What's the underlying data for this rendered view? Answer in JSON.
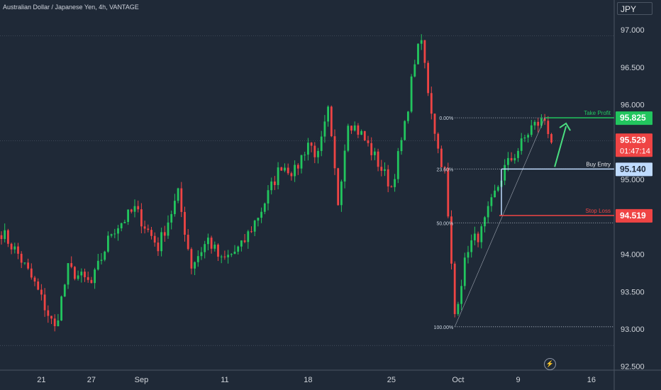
{
  "header": {
    "title": "Australian Dollar / Japanese Yen, 4h, VANTAGE",
    "currency": "JPY"
  },
  "colors": {
    "background": "#1f2937",
    "up": "#22c55e",
    "down": "#ef4444",
    "take_profit": "#22c55e",
    "stop_loss": "#ef4444",
    "entry": "#bfdbfe",
    "axis_text": "#d1d5db"
  },
  "chart_data": {
    "type": "candlestick",
    "y_ticks": [
      "97.000",
      "96.500",
      "96.000",
      "95.500",
      "95.000",
      "94.500",
      "94.000",
      "93.500",
      "93.000",
      "92.500"
    ],
    "y_tick_values": [
      97.0,
      96.5,
      96.0,
      95.5,
      95.0,
      94.5,
      94.0,
      93.5,
      93.0,
      92.5
    ],
    "ylim": [
      92.45,
      97.4
    ],
    "x_ticks": [
      "21",
      "27",
      "Sep",
      "11",
      "18",
      "25",
      "Oct",
      "9",
      "16"
    ],
    "x_tick_index": [
      12,
      27,
      42,
      67,
      92,
      117,
      137,
      155,
      177
    ],
    "candle_count": 175,
    "path": [
      {
        "i": 0,
        "v": 94.3
      },
      {
        "i": 5,
        "v": 94.0
      },
      {
        "i": 10,
        "v": 93.6
      },
      {
        "i": 16,
        "v": 93.0
      },
      {
        "i": 20,
        "v": 93.8
      },
      {
        "i": 27,
        "v": 93.6
      },
      {
        "i": 33,
        "v": 94.3
      },
      {
        "i": 40,
        "v": 94.6
      },
      {
        "i": 47,
        "v": 94.1
      },
      {
        "i": 53,
        "v": 94.8
      },
      {
        "i": 57,
        "v": 93.85
      },
      {
        "i": 62,
        "v": 94.2
      },
      {
        "i": 66,
        "v": 93.9
      },
      {
        "i": 72,
        "v": 94.1
      },
      {
        "i": 78,
        "v": 94.6
      },
      {
        "i": 84,
        "v": 95.2
      },
      {
        "i": 88,
        "v": 95.1
      },
      {
        "i": 92,
        "v": 95.5
      },
      {
        "i": 95,
        "v": 95.3
      },
      {
        "i": 98,
        "v": 95.9
      },
      {
        "i": 101,
        "v": 94.7
      },
      {
        "i": 104,
        "v": 95.8
      },
      {
        "i": 108,
        "v": 95.6
      },
      {
        "i": 112,
        "v": 95.3
      },
      {
        "i": 117,
        "v": 94.9
      },
      {
        "i": 121,
        "v": 95.7
      },
      {
        "i": 124,
        "v": 96.6
      },
      {
        "i": 126,
        "v": 96.85
      },
      {
        "i": 128,
        "v": 96.2
      },
      {
        "i": 131,
        "v": 95.4
      },
      {
        "i": 133,
        "v": 95.1
      },
      {
        "i": 136,
        "v": 93.2
      },
      {
        "i": 140,
        "v": 94.1
      },
      {
        "i": 144,
        "v": 94.3
      },
      {
        "i": 148,
        "v": 94.8
      },
      {
        "i": 151,
        "v": 95.15
      },
      {
        "i": 155,
        "v": 95.4
      },
      {
        "i": 159,
        "v": 95.7
      },
      {
        "i": 163,
        "v": 95.8
      },
      {
        "i": 165,
        "v": 95.53
      }
    ],
    "volatility": 0.12,
    "fibonacci": [
      {
        "label": "0.00%",
        "value": 95.825
      },
      {
        "label": "23.60%",
        "value": 95.14
      },
      {
        "label": "50.00%",
        "value": 94.42
      },
      {
        "label": "100.00%",
        "value": 93.03
      }
    ],
    "levels": {
      "take_profit": {
        "label": "Take Profit",
        "value": 95.825,
        "display": "95.825"
      },
      "buy_entry": {
        "label": "Buy Entry",
        "value": 95.14,
        "display": "95.140"
      },
      "stop_loss": {
        "label": "Stop Loss",
        "value": 94.519,
        "display": "94.519"
      }
    },
    "current_price": {
      "value": 95.529,
      "display": "95.529",
      "countdown": "01:47:14"
    },
    "reference_lines": [
      96.92,
      95.52,
      92.78
    ]
  }
}
